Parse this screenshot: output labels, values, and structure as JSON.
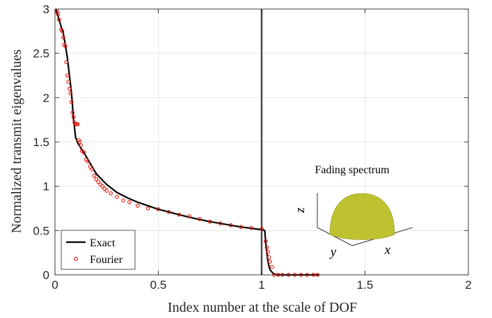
{
  "chart_data": {
    "type": "line",
    "xlabel": "Index number at the scale of DOF",
    "ylabel": "Normalized transmit eigenvalues",
    "xlim": [
      0,
      2
    ],
    "ylim": [
      0,
      3
    ],
    "xticks": [
      0,
      0.5,
      1,
      1.5,
      2
    ],
    "xtick_labels": [
      "0",
      "0.5",
      "1",
      "1.5",
      "2"
    ],
    "yticks": [
      0,
      0.5,
      1,
      1.5,
      2,
      2.5,
      3
    ],
    "ytick_labels": [
      "0",
      "0.5",
      "1",
      "1.5",
      "2",
      "2.5",
      "3"
    ],
    "grid": true,
    "vertical_line_x": 1,
    "legend_position": "bottom-left",
    "series": [
      {
        "name": "Exact",
        "style": "solid-line",
        "color": "#000000",
        "x": [
          0.005,
          0.02,
          0.03,
          0.04,
          0.05,
          0.06,
          0.07,
          0.08,
          0.09,
          0.1,
          0.11,
          0.12,
          0.14,
          0.16,
          0.18,
          0.2,
          0.25,
          0.3,
          0.35,
          0.4,
          0.45,
          0.5,
          0.55,
          0.6,
          0.65,
          0.7,
          0.75,
          0.8,
          0.85,
          0.9,
          0.95,
          1.0,
          1.015,
          1.02,
          1.025,
          1.03,
          1.035,
          1.04,
          1.05,
          1.06,
          1.08,
          1.1,
          1.2,
          1.28
        ],
        "y": [
          3.0,
          2.88,
          2.8,
          2.73,
          2.6,
          2.45,
          2.25,
          2.05,
          1.75,
          1.55,
          1.49,
          1.45,
          1.38,
          1.3,
          1.22,
          1.14,
          1.02,
          0.93,
          0.87,
          0.82,
          0.78,
          0.74,
          0.71,
          0.68,
          0.65,
          0.625,
          0.6,
          0.58,
          0.56,
          0.54,
          0.525,
          0.51,
          0.5,
          0.35,
          0.25,
          0.16,
          0.1,
          0.06,
          0.03,
          0.01,
          0.0,
          0.0,
          0.0,
          0.0
        ]
      },
      {
        "name": "Fourier",
        "style": "markers",
        "color": "#e8160c",
        "x": [
          0.01,
          0.015,
          0.02,
          0.03,
          0.035,
          0.04,
          0.045,
          0.05,
          0.055,
          0.06,
          0.065,
          0.07,
          0.075,
          0.08,
          0.085,
          0.09,
          0.095,
          0.1,
          0.105,
          0.11,
          0.115,
          0.12,
          0.125,
          0.13,
          0.14,
          0.15,
          0.16,
          0.17,
          0.18,
          0.19,
          0.2,
          0.21,
          0.22,
          0.23,
          0.24,
          0.25,
          0.27,
          0.3,
          0.33,
          0.36,
          0.4,
          0.45,
          0.5,
          0.55,
          0.6,
          0.65,
          0.7,
          0.75,
          0.8,
          0.85,
          0.9,
          0.95,
          1.0,
          1.02,
          1.025,
          1.03,
          1.035,
          1.04,
          1.05,
          1.06,
          1.08,
          1.1,
          1.13,
          1.16,
          1.19,
          1.22,
          1.25,
          1.27
        ],
        "y": [
          2.97,
          2.94,
          2.88,
          2.77,
          2.75,
          2.68,
          2.6,
          2.58,
          2.4,
          2.25,
          2.18,
          2.1,
          2.05,
          1.95,
          1.83,
          1.78,
          1.72,
          1.7,
          1.7,
          1.7,
          1.52,
          1.5,
          1.46,
          1.4,
          1.38,
          1.3,
          1.28,
          1.22,
          1.19,
          1.12,
          1.08,
          1.05,
          1.02,
          1.0,
          0.97,
          0.95,
          0.92,
          0.88,
          0.84,
          0.82,
          0.78,
          0.75,
          0.74,
          0.71,
          0.68,
          0.66,
          0.63,
          0.6,
          0.58,
          0.56,
          0.54,
          0.53,
          0.52,
          0.38,
          0.31,
          0.26,
          0.2,
          0.15,
          0.09,
          0.0,
          0.0,
          0.0,
          0.0,
          0.0,
          0.0,
          0.0,
          0.0,
          0.0
        ]
      }
    ],
    "inset": {
      "title": "Fading spectrum",
      "axes": [
        "z",
        "y",
        "x"
      ],
      "shape_color": "#bfc230"
    }
  }
}
